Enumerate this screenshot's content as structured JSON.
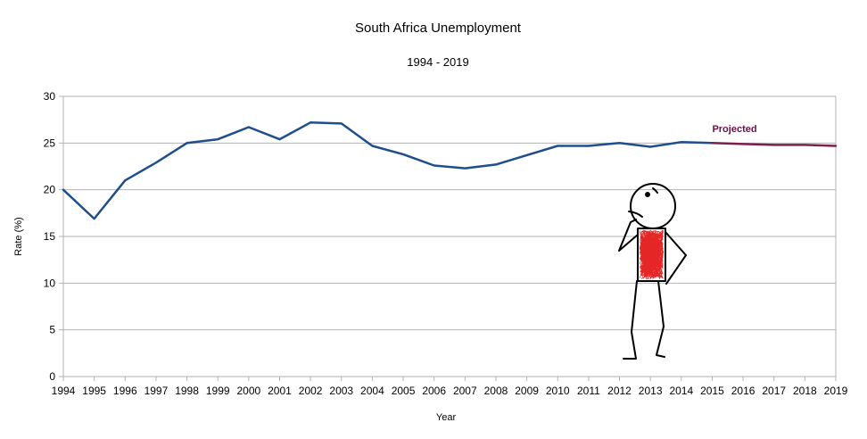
{
  "chart_data": {
    "type": "line",
    "title": "South Africa Unemployment",
    "subtitle": "1994 - 2019",
    "xlabel": "Year",
    "ylabel": "Rate (%)",
    "ylim": [
      0,
      30
    ],
    "yticks": [
      0,
      5,
      10,
      15,
      20,
      25,
      30
    ],
    "grid": true,
    "x": [
      1994,
      1995,
      1996,
      1997,
      1998,
      1999,
      2000,
      2001,
      2002,
      2003,
      2004,
      2005,
      2006,
      2007,
      2008,
      2009,
      2010,
      2011,
      2012,
      2013,
      2014,
      2015,
      2016,
      2017,
      2018,
      2019
    ],
    "series": [
      {
        "values": [
          20.0,
          16.9,
          21.0,
          22.9,
          25.0,
          25.4,
          26.7,
          25.4,
          27.2,
          27.1,
          24.7,
          23.8,
          22.6,
          22.3,
          22.7,
          23.7,
          24.7,
          24.7,
          25.0,
          24.6,
          25.1,
          25.0,
          null,
          null,
          null,
          null
        ],
        "color": "#1f4e8c"
      },
      {
        "values": [
          null,
          null,
          null,
          null,
          null,
          null,
          null,
          null,
          null,
          null,
          null,
          null,
          null,
          null,
          null,
          null,
          null,
          null,
          null,
          null,
          null,
          25.0,
          24.9,
          24.8,
          24.8,
          24.7
        ],
        "color": "#7b1f4e"
      }
    ],
    "annotations": [
      {
        "text": "Projected",
        "x": 2015.0,
        "y": 26.2,
        "color": "#6b0f46"
      }
    ]
  }
}
